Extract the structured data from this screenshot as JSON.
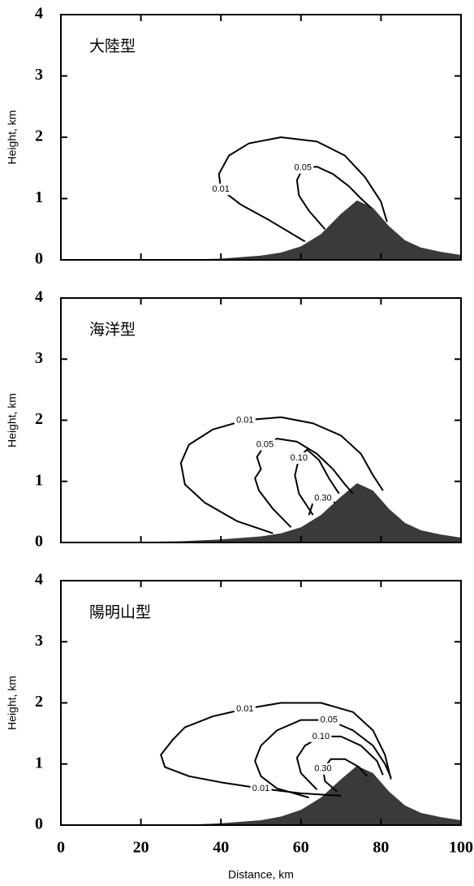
{
  "chart_data": [
    {
      "type": "contour",
      "title": "大陸型",
      "ylabel": "Height, km",
      "xlim": [
        0,
        100
      ],
      "ylim": [
        0,
        4
      ],
      "xticks": [
        0,
        20,
        40,
        60,
        80,
        100
      ],
      "yticks": [
        0,
        1,
        2,
        3,
        4
      ],
      "terrain": {
        "color": "#3a3a3a",
        "x": [
          30,
          40,
          50,
          55,
          60,
          65,
          70,
          74,
          78,
          82,
          86,
          90,
          95,
          100
        ],
        "values": [
          0,
          0.02,
          0.07,
          0.12,
          0.22,
          0.42,
          0.75,
          0.97,
          0.85,
          0.55,
          0.32,
          0.2,
          0.13,
          0.08
        ]
      },
      "series": [
        {
          "name": "0.01",
          "color": "#000",
          "x": [
            61,
            52,
            45,
            40,
            39.5,
            42,
            47,
            55,
            64,
            71,
            76,
            80,
            81.5
          ],
          "values": [
            0.3,
            0.65,
            0.9,
            1.15,
            1.4,
            1.7,
            1.9,
            2.0,
            1.93,
            1.7,
            1.35,
            0.95,
            0.62
          ]
        },
        {
          "name": "0.05",
          "color": "#000",
          "x": [
            66,
            62,
            59.5,
            59,
            60.5,
            64,
            68,
            72,
            75,
            77.5
          ],
          "values": [
            0.5,
            0.8,
            1.05,
            1.3,
            1.5,
            1.52,
            1.4,
            1.2,
            1.0,
            0.85
          ]
        }
      ]
    },
    {
      "type": "contour",
      "title": "海洋型",
      "ylabel": "Height, km",
      "xlim": [
        0,
        100
      ],
      "ylim": [
        0,
        4
      ],
      "xticks": [
        0,
        20,
        40,
        60,
        80,
        100
      ],
      "yticks": [
        0,
        1,
        2,
        3,
        4
      ],
      "terrain": {
        "color": "#3a3a3a",
        "x": [
          10,
          20,
          30,
          40,
          50,
          55,
          60,
          65,
          70,
          74,
          78,
          82,
          86,
          90,
          95,
          100
        ],
        "values": [
          0,
          0.01,
          0.02,
          0.05,
          0.1,
          0.15,
          0.25,
          0.45,
          0.75,
          0.97,
          0.85,
          0.55,
          0.32,
          0.2,
          0.13,
          0.08
        ]
      },
      "series": [
        {
          "name": "0.01",
          "color": "#000",
          "x": [
            53,
            44,
            36,
            31,
            30,
            32,
            38,
            46,
            55,
            63,
            70,
            75,
            78,
            80.5
          ],
          "values": [
            0.15,
            0.35,
            0.65,
            0.95,
            1.3,
            1.6,
            1.85,
            2.0,
            2.05,
            1.95,
            1.75,
            1.45,
            1.1,
            0.85
          ]
        },
        {
          "name": "0.05",
          "color": "#000",
          "x": [
            57.5,
            53,
            49.5,
            48.5,
            50,
            49,
            51,
            54,
            59,
            64,
            68,
            71,
            73
          ],
          "values": [
            0.25,
            0.55,
            0.85,
            1.05,
            1.2,
            1.4,
            1.6,
            1.7,
            1.65,
            1.45,
            1.2,
            0.95,
            0.8
          ]
        },
        {
          "name": "0.10",
          "color": "#000",
          "x": [
            63,
            59.5,
            58.5,
            59.5,
            61.5,
            64.5,
            67,
            69.5
          ],
          "values": [
            0.45,
            0.8,
            1.1,
            1.38,
            1.52,
            1.35,
            1.05,
            0.8
          ]
        },
        {
          "name": "0.30",
          "color": "#000",
          "x": [
            62,
            63,
            65.5,
            68.5
          ],
          "values": [
            0.45,
            0.65,
            0.72,
            0.65
          ]
        }
      ]
    },
    {
      "type": "contour",
      "title": "陽明山型",
      "ylabel": "Height, km",
      "xlabel": "Distance, km",
      "xlim": [
        0,
        100
      ],
      "ylim": [
        0,
        4
      ],
      "xticks": [
        0,
        20,
        40,
        60,
        80,
        100
      ],
      "yticks": [
        0,
        1,
        2,
        3,
        4
      ],
      "terrain": {
        "color": "#3a3a3a",
        "x": [
          30,
          40,
          50,
          55,
          60,
          65,
          70,
          74,
          78,
          82,
          86,
          90,
          95,
          100
        ],
        "values": [
          0,
          0.03,
          0.08,
          0.14,
          0.25,
          0.45,
          0.75,
          0.97,
          0.85,
          0.55,
          0.32,
          0.2,
          0.13,
          0.08
        ]
      },
      "series": [
        {
          "name": "0.01",
          "color": "#000",
          "x": [
            70,
            60,
            50,
            40,
            32,
            26,
            25,
            28,
            31,
            38,
            46,
            55,
            65,
            73,
            78,
            81,
            82.5
          ],
          "values": [
            0.48,
            0.52,
            0.6,
            0.7,
            0.8,
            0.95,
            1.15,
            1.4,
            1.6,
            1.78,
            1.9,
            2.0,
            2.0,
            1.85,
            1.55,
            1.15,
            0.75
          ]
        },
        {
          "name": "0.05",
          "color": "#000",
          "x": [
            62,
            54,
            50,
            48.5,
            50,
            54,
            60,
            67,
            73,
            78,
            81,
            82.5
          ],
          "values": [
            0.45,
            0.6,
            0.8,
            1.05,
            1.3,
            1.55,
            1.72,
            1.72,
            1.55,
            1.3,
            1.0,
            0.78
          ]
        },
        {
          "name": "0.10",
          "color": "#000",
          "x": [
            64,
            60,
            59,
            61,
            65,
            70,
            75,
            79,
            80.5
          ],
          "values": [
            0.58,
            0.85,
            1.1,
            1.3,
            1.45,
            1.45,
            1.3,
            1.05,
            0.82
          ]
        },
        {
          "name": "0.30",
          "color": "#000",
          "x": [
            69,
            66,
            65.5,
            67.5,
            71,
            74.5,
            76.5
          ],
          "values": [
            0.55,
            0.72,
            0.92,
            1.08,
            1.08,
            0.95,
            0.8
          ]
        }
      ]
    }
  ]
}
